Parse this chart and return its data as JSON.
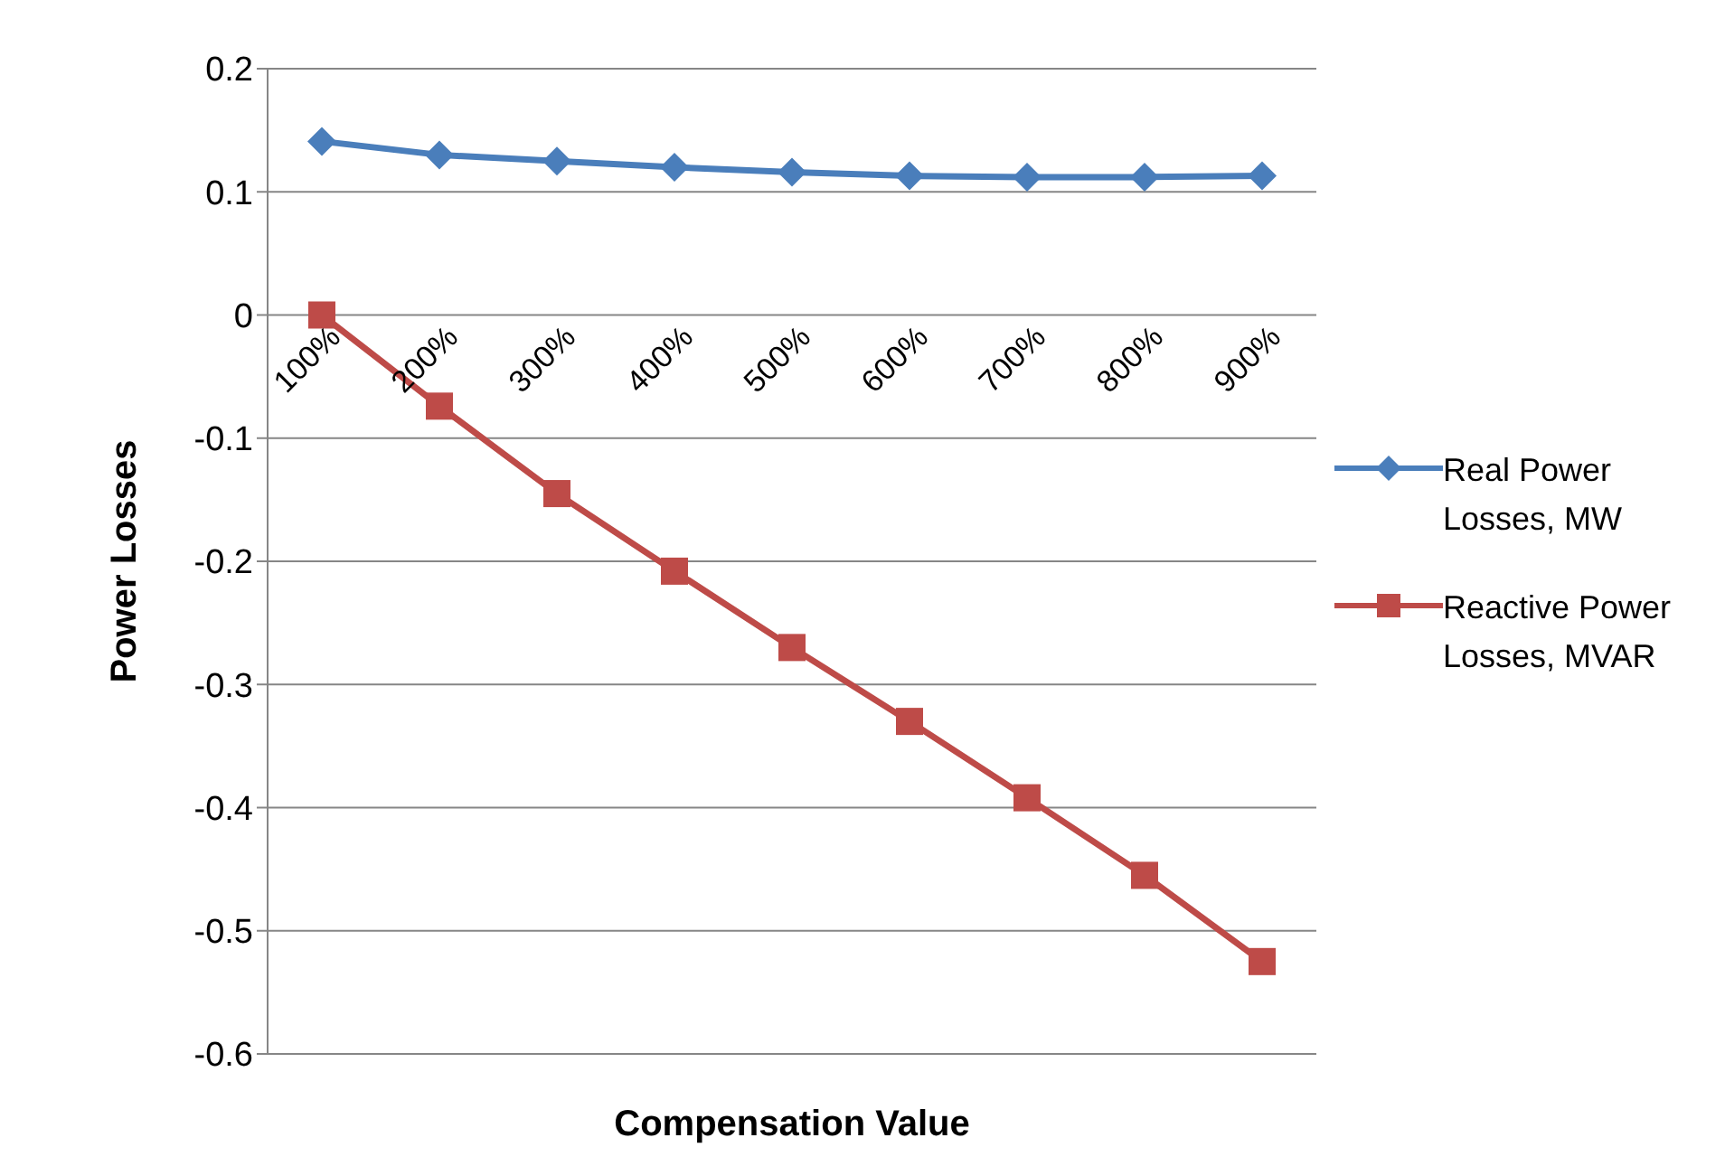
{
  "chart_data": {
    "type": "line",
    "xlabel": "Compensation Value",
    "ylabel": "Power Losses",
    "categories": [
      "100%",
      "200%",
      "300%",
      "400%",
      "500%",
      "600%",
      "700%",
      "800%",
      "900%"
    ],
    "series": [
      {
        "name": "Real Power Losses, MW",
        "color": "#4a7ebb",
        "marker": "diamond",
        "values": [
          0.141,
          0.13,
          0.125,
          0.12,
          0.116,
          0.113,
          0.112,
          0.112,
          0.113
        ]
      },
      {
        "name": "Reactive Power Losses, MVAR",
        "color": "#be4b48",
        "marker": "square",
        "values": [
          0,
          -0.074,
          -0.145,
          -0.208,
          -0.27,
          -0.33,
          -0.392,
          -0.455,
          -0.525
        ]
      }
    ],
    "ylim": [
      -0.6,
      0.2
    ],
    "yticks": [
      -0.6,
      -0.5,
      -0.4,
      -0.3,
      -0.2,
      -0.1,
      0,
      0.1,
      0.2
    ],
    "grid": "y",
    "legend": "right"
  }
}
